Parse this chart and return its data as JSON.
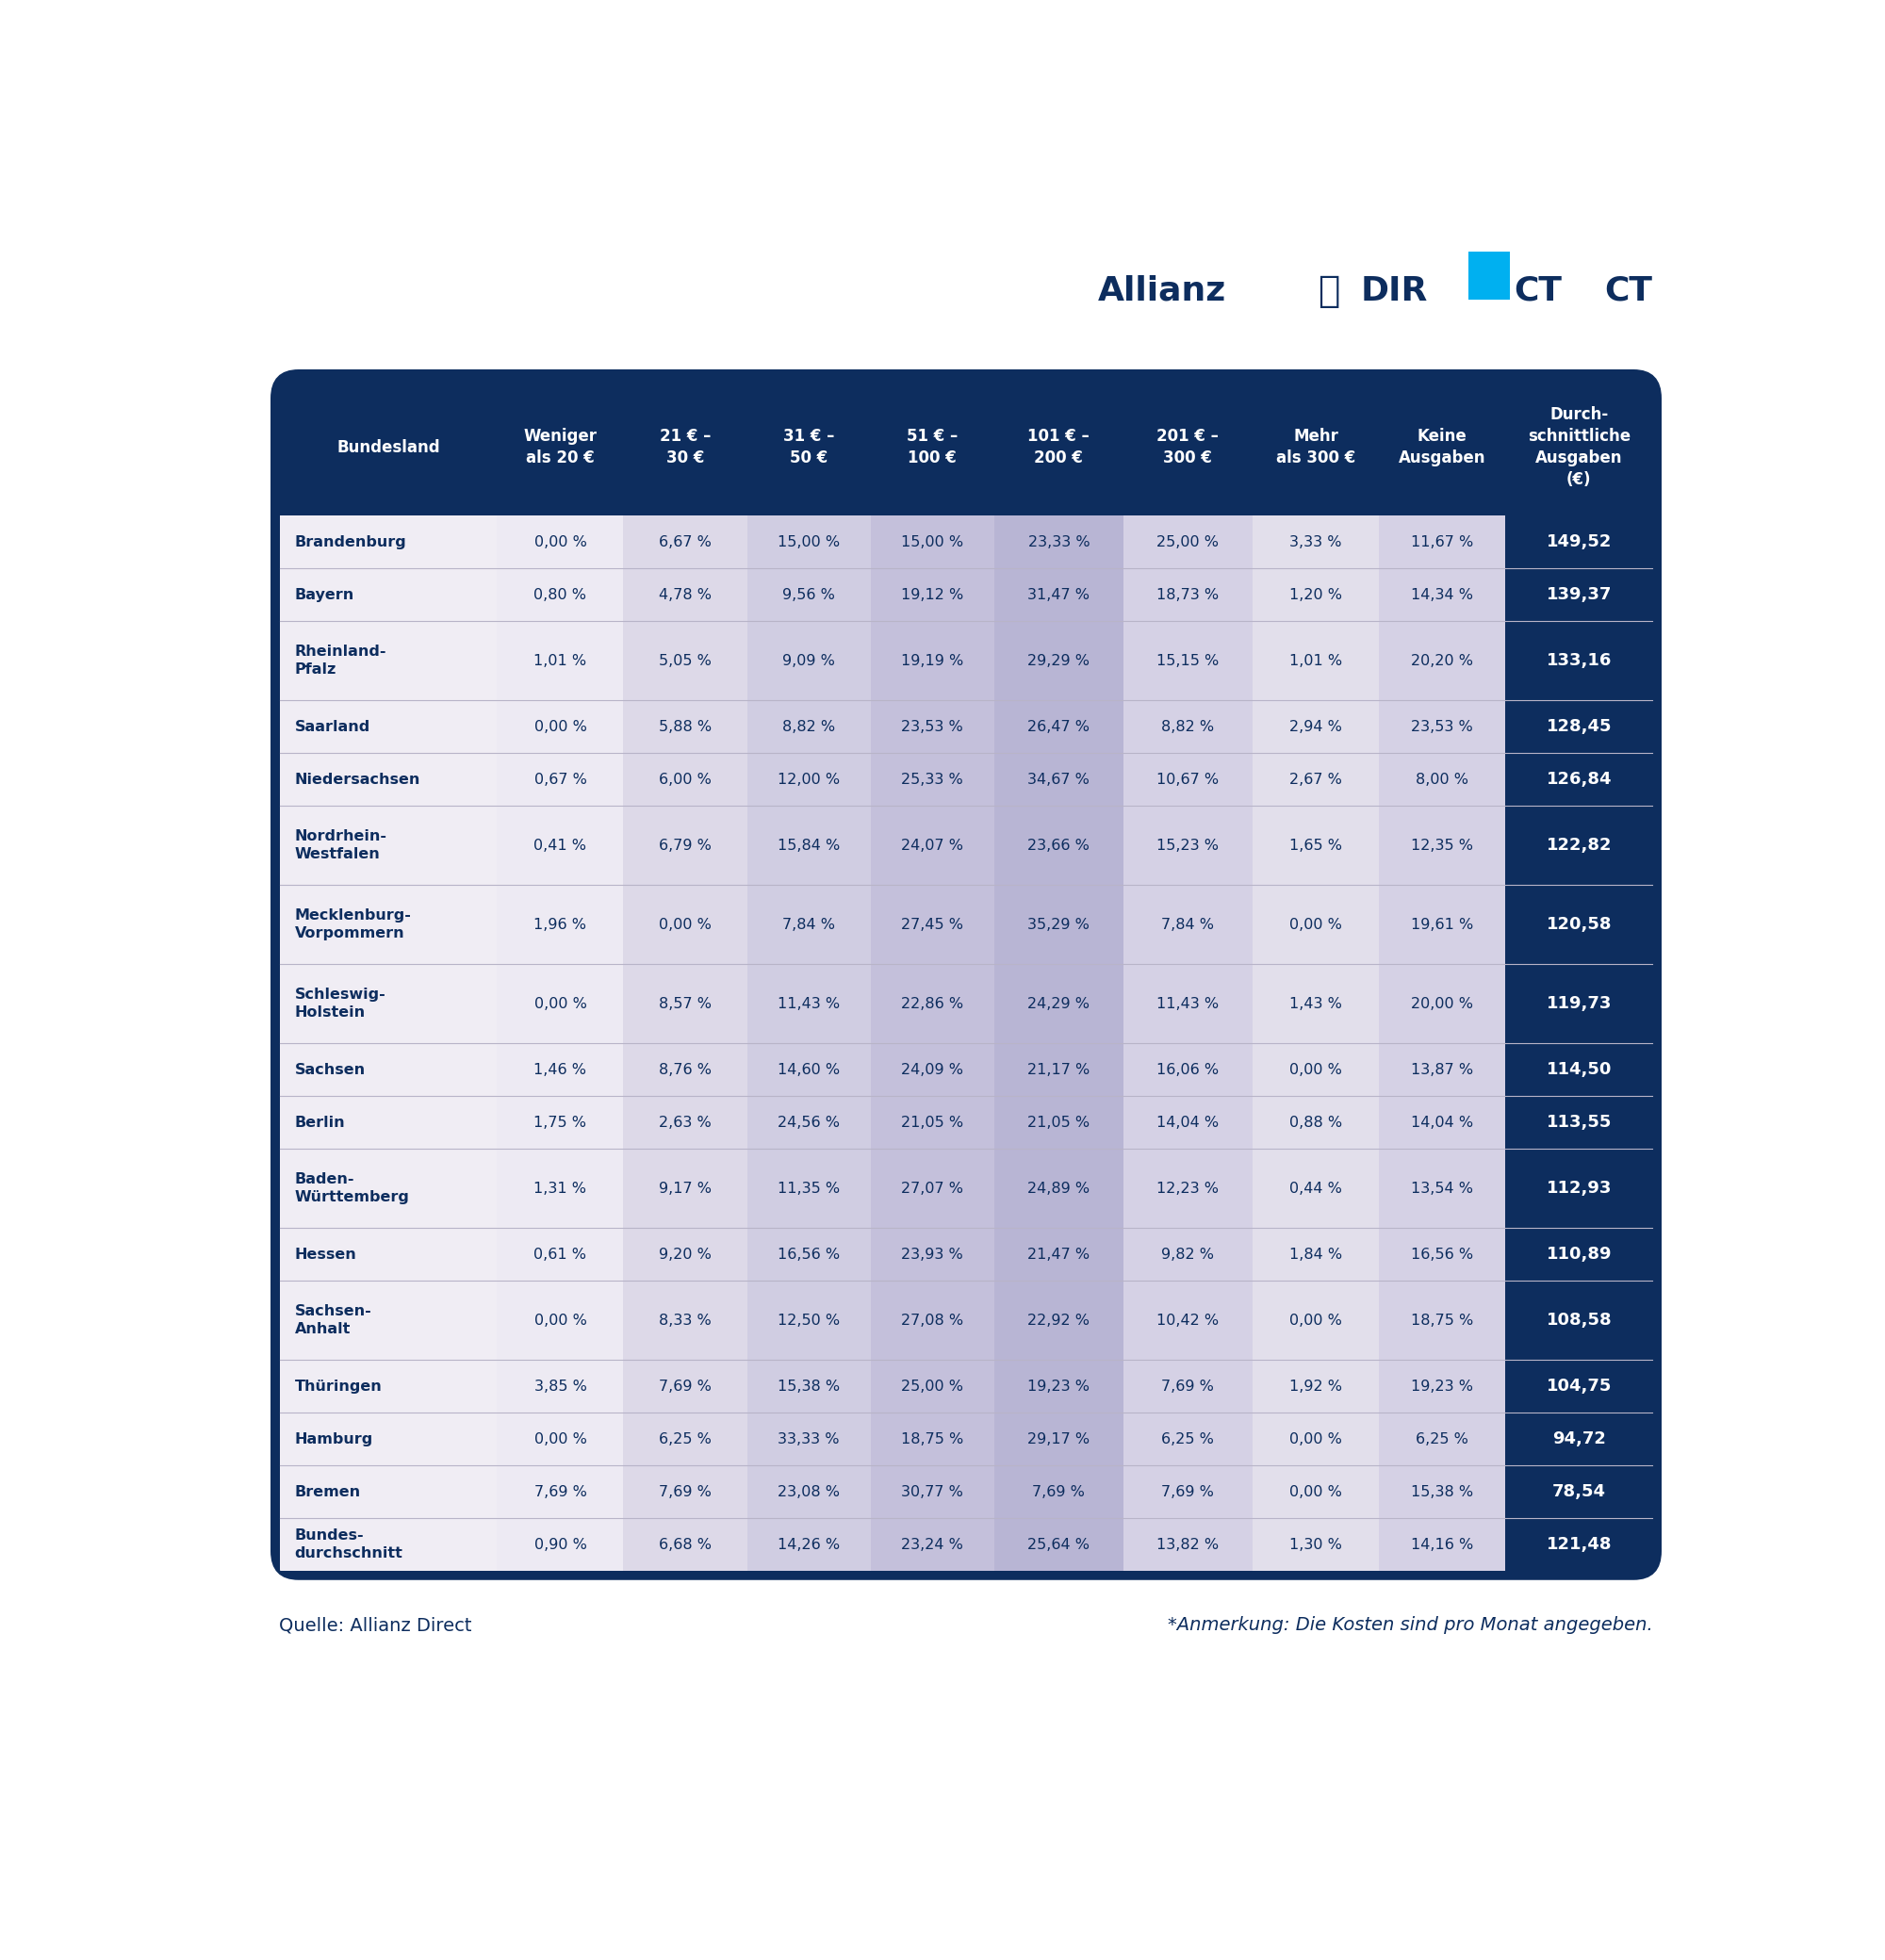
{
  "headers": [
    "Bundesland",
    "Weniger\nals 20 €",
    "21 € –\n30 €",
    "31 € –\n50 €",
    "51 € –\n100 €",
    "101 € –\n200 €",
    "201 € –\n300 €",
    "Mehr\nals 300 €",
    "Keine\nAusgaben",
    "Durch-\nschnittliche\nAusgaben\n(€)"
  ],
  "rows": [
    [
      "Brandenburg",
      "0,00 %",
      "6,67 %",
      "15,00 %",
      "15,00 %",
      "23,33 %",
      "25,00 %",
      "3,33 %",
      "11,67 %",
      "149,52"
    ],
    [
      "Bayern",
      "0,80 %",
      "4,78 %",
      "9,56 %",
      "19,12 %",
      "31,47 %",
      "18,73 %",
      "1,20 %",
      "14,34 %",
      "139,37"
    ],
    [
      "Rheinland-\nPfalz",
      "1,01 %",
      "5,05 %",
      "9,09 %",
      "19,19 %",
      "29,29 %",
      "15,15 %",
      "1,01 %",
      "20,20 %",
      "133,16"
    ],
    [
      "Saarland",
      "0,00 %",
      "5,88 %",
      "8,82 %",
      "23,53 %",
      "26,47 %",
      "8,82 %",
      "2,94 %",
      "23,53 %",
      "128,45"
    ],
    [
      "Niedersachsen",
      "0,67 %",
      "6,00 %",
      "12,00 %",
      "25,33 %",
      "34,67 %",
      "10,67 %",
      "2,67 %",
      "8,00 %",
      "126,84"
    ],
    [
      "Nordrhein-\nWestfalen",
      "0,41 %",
      "6,79 %",
      "15,84 %",
      "24,07 %",
      "23,66 %",
      "15,23 %",
      "1,65 %",
      "12,35 %",
      "122,82"
    ],
    [
      "Mecklenburg-\nVorpommern",
      "1,96 %",
      "0,00 %",
      "7,84 %",
      "27,45 %",
      "35,29 %",
      "7,84 %",
      "0,00 %",
      "19,61 %",
      "120,58"
    ],
    [
      "Schleswig-\nHolstein",
      "0,00 %",
      "8,57 %",
      "11,43 %",
      "22,86 %",
      "24,29 %",
      "11,43 %",
      "1,43 %",
      "20,00 %",
      "119,73"
    ],
    [
      "Sachsen",
      "1,46 %",
      "8,76 %",
      "14,60 %",
      "24,09 %",
      "21,17 %",
      "16,06 %",
      "0,00 %",
      "13,87 %",
      "114,50"
    ],
    [
      "Berlin",
      "1,75 %",
      "2,63 %",
      "24,56 %",
      "21,05 %",
      "21,05 %",
      "14,04 %",
      "0,88 %",
      "14,04 %",
      "113,55"
    ],
    [
      "Baden-\nWürttemberg",
      "1,31 %",
      "9,17 %",
      "11,35 %",
      "27,07 %",
      "24,89 %",
      "12,23 %",
      "0,44 %",
      "13,54 %",
      "112,93"
    ],
    [
      "Hessen",
      "0,61 %",
      "9,20 %",
      "16,56 %",
      "23,93 %",
      "21,47 %",
      "9,82 %",
      "1,84 %",
      "16,56 %",
      "110,89"
    ],
    [
      "Sachsen-\nAnhalt",
      "0,00 %",
      "8,33 %",
      "12,50 %",
      "27,08 %",
      "22,92 %",
      "10,42 %",
      "0,00 %",
      "18,75 %",
      "108,58"
    ],
    [
      "Thüringen",
      "3,85 %",
      "7,69 %",
      "15,38 %",
      "25,00 %",
      "19,23 %",
      "7,69 %",
      "1,92 %",
      "19,23 %",
      "104,75"
    ],
    [
      "Hamburg",
      "0,00 %",
      "6,25 %",
      "33,33 %",
      "18,75 %",
      "29,17 %",
      "6,25 %",
      "0,00 %",
      "6,25 %",
      "94,72"
    ],
    [
      "Bremen",
      "7,69 %",
      "7,69 %",
      "23,08 %",
      "30,77 %",
      "7,69 %",
      "7,69 %",
      "0,00 %",
      "15,38 %",
      "78,54"
    ],
    [
      "Bundes-\ndurchschnitt",
      "0,90 %",
      "6,68 %",
      "14,26 %",
      "23,24 %",
      "25,64 %",
      "13,82 %",
      "1,30 %",
      "14,16 %",
      "121,48"
    ]
  ],
  "header_bg": "#0d2d5e",
  "header_text": "#ffffff",
  "col_shades": [
    "#f0edf4",
    "#edeaf3",
    "#ddd9e8",
    "#d0cde2",
    "#c4c0db",
    "#b8b5d4",
    "#d5d1e5",
    "#e2dfeb",
    "#d5d1e5",
    "#0d2d5e"
  ],
  "last_col_bg": "#0d2d5e",
  "last_col_text": "#ffffff",
  "row_separator_color": "#b8b4c8",
  "footer_left": "Quelle: Allianz Direct",
  "footer_right": "*Anmerkung: Die Kosten sind pro Monat angegeben.",
  "footer_color": "#0d2d5e",
  "background_color": "#ffffff",
  "dark_blue": "#0d2d5e",
  "cyan": "#00b0f0"
}
